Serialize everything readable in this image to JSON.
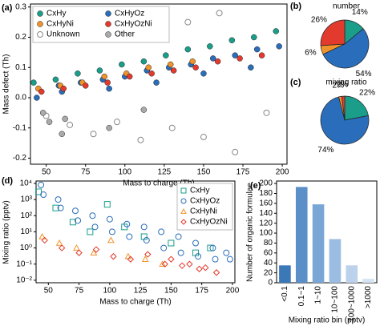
{
  "chart_data": [
    {
      "type": "scatter",
      "panel_label": "(a)",
      "x_label": "Mass to charge (Th)",
      "y_label": "Mass defect (Th)",
      "xlim": [
        40,
        203
      ],
      "ylim": [
        -0.22,
        0.31
      ],
      "xticks": [
        50,
        75,
        100,
        125,
        150,
        175,
        200
      ],
      "yticks": [
        -0.2,
        -0.1,
        {
          "value": 0,
          "label": "0.0"
        },
        0.1,
        0.2,
        0.3
      ],
      "legend": "upper left",
      "series": [
        {
          "name": "CxHy",
          "color": "#1a9e8a",
          "marker": "circle",
          "filled": true,
          "x": [
            42,
            56,
            70,
            84,
            98,
            112,
            126,
            140,
            154,
            168,
            182,
            196
          ],
          "values": [
            0.05,
            0.06,
            0.08,
            0.09,
            0.11,
            0.12,
            0.14,
            0.16,
            0.17,
            0.19,
            0.2,
            0.22
          ]
        },
        {
          "name": "CxHyOz",
          "color": "#2a6ebb",
          "marker": "circle",
          "filled": true,
          "x": [
            44,
            58,
            72,
            86,
            100,
            114,
            128,
            142,
            156,
            170,
            184,
            198,
            60,
            90,
            120,
            150,
            180
          ],
          "values": [
            0.0,
            0.04,
            0.05,
            0.06,
            0.07,
            0.09,
            0.1,
            0.11,
            0.13,
            0.14,
            0.16,
            0.17,
            0.02,
            0.03,
            0.05,
            0.08,
            0.1
          ]
        },
        {
          "name": "CxHyNi",
          "color": "#f0932b",
          "marker": "circle",
          "filled": true,
          "x": [
            45,
            59,
            73,
            87,
            101,
            115,
            129,
            143
          ],
          "values": [
            0.03,
            0.04,
            0.05,
            0.07,
            0.08,
            0.1,
            0.11,
            0.12
          ]
        },
        {
          "name": "CxHyOzNi",
          "color": "#e23b2e",
          "marker": "circle",
          "filled": true,
          "x": [
            47,
            61,
            75,
            89,
            103,
            117,
            131,
            145,
            159,
            173,
            187
          ],
          "values": [
            0.02,
            0.03,
            0.04,
            0.05,
            0.07,
            0.08,
            0.09,
            0.1,
            0.12,
            0.13,
            0.14
          ]
        },
        {
          "name": "Unknown",
          "color": "#888888",
          "marker": "circle",
          "filled": false,
          "x": [
            50,
            65,
            80,
            95,
            110,
            130,
            150,
            170,
            190,
            140,
            160
          ],
          "values": [
            -0.06,
            -0.09,
            -0.12,
            -0.08,
            -0.14,
            -0.1,
            -0.13,
            -0.18,
            -0.05,
            0.25,
            0.28
          ]
        },
        {
          "name": "Other",
          "color": "#aaaaaa",
          "marker": "circle",
          "filled": true,
          "x": [
            48,
            52,
            62,
            90,
            112,
            60
          ],
          "values": [
            -0.05,
            -0.08,
            -0.07,
            -0.1,
            -0.04,
            -0.12
          ]
        }
      ]
    },
    {
      "type": "pie",
      "panel_label": "(b)",
      "title": "number",
      "values": [
        14,
        54,
        6,
        26
      ],
      "value_labels": [
        "14%",
        "54%",
        "6%",
        "26%"
      ],
      "colors": [
        "#1a9e8a",
        "#2a6ebb",
        "#f0932b",
        "#e23b2e"
      ]
    },
    {
      "type": "pie",
      "panel_label": "(c)",
      "title": "mixing ratio",
      "values": [
        22,
        74,
        2,
        2
      ],
      "value_labels": [
        "22%",
        "74%",
        "2%",
        "2%"
      ],
      "colors": [
        "#1a9e8a",
        "#2a6ebb",
        "#f0932b",
        "#e23b2e"
      ]
    },
    {
      "type": "scatter",
      "panel_label": "(d)",
      "x_label": "Mass to charge (Th)",
      "y_label": "Mixing ratio (pptv)",
      "xlim": [
        40,
        202
      ],
      "ylim": [
        0.007,
        14000
      ],
      "y_log": true,
      "xticks": [
        50,
        75,
        100,
        125,
        150,
        175,
        200
      ],
      "yticks": [
        {
          "value": 0.01,
          "label": "10⁻²"
        },
        {
          "value": 0.1,
          "label": "10⁻¹"
        },
        {
          "value": 1,
          "label": "10⁰"
        },
        {
          "value": 10,
          "label": "10¹"
        },
        {
          "value": 100,
          "label": "10²"
        },
        {
          "value": 1000,
          "label": "10³"
        },
        {
          "value": 10000,
          "label": "10⁴"
        }
      ],
      "legend": "upper right",
      "series": [
        {
          "name": "CxHy",
          "color": "#1a9e8a",
          "marker": "square",
          "filled": false,
          "x": [
            42,
            56,
            70,
            84,
            98,
            112,
            128,
            150,
            170,
            182
          ],
          "values": [
            3000,
            300,
            40,
            10,
            500,
            20,
            5,
            2,
            0.5,
            1
          ]
        },
        {
          "name": "CxHyOz",
          "color": "#2a6ebb",
          "marker": "circle",
          "filled": false,
          "x": [
            44,
            46,
            58,
            60,
            72,
            74,
            86,
            88,
            100,
            102,
            114,
            116,
            128,
            130,
            142,
            144,
            156,
            158,
            170,
            172,
            184,
            186,
            195,
            198
          ],
          "values": [
            8000,
            2000,
            1000,
            300,
            200,
            50,
            100,
            20,
            60,
            10,
            30,
            5,
            20,
            3,
            10,
            1,
            5,
            0.5,
            2,
            0.3,
            1,
            0.2,
            0.5,
            0.2
          ]
        },
        {
          "name": "CxHyNi",
          "color": "#f0932b",
          "marker": "triangle",
          "filled": false,
          "x": [
            45,
            59,
            73,
            87,
            101,
            115,
            129,
            143
          ],
          "values": [
            5,
            2,
            1,
            0.5,
            3,
            0.3,
            0.2,
            0.1
          ]
        },
        {
          "name": "CxHyOzNi",
          "color": "#e23b2e",
          "marker": "diamond",
          "filled": false,
          "x": [
            47,
            61,
            75,
            89,
            103,
            117,
            131,
            145,
            159,
            173,
            187,
            150,
            165,
            178
          ],
          "values": [
            3,
            1,
            0.5,
            0.8,
            0.3,
            0.2,
            0.4,
            0.1,
            0.08,
            0.05,
            0.03,
            0.2,
            0.1,
            0.06
          ]
        }
      ]
    },
    {
      "type": "bar",
      "panel_label": "(e)",
      "x_label": "Mixing ratio bin (pptv)",
      "y_label": "Number of organic formulae",
      "categories": [
        "<0.1",
        "0.1~1",
        "1~10",
        "10~100",
        "100~1000",
        ">1000"
      ],
      "values": [
        35,
        193,
        158,
        88,
        35,
        8
      ],
      "colors": [
        "#3b78b8",
        "#5a8fc8",
        "#7aa6d6",
        "#9bbde2",
        "#bcd2ec",
        "#d6e3f3"
      ],
      "ylim": [
        0,
        205
      ],
      "yticks": [
        0,
        20,
        40,
        60,
        80,
        100,
        120,
        140,
        160,
        180,
        200
      ]
    }
  ]
}
